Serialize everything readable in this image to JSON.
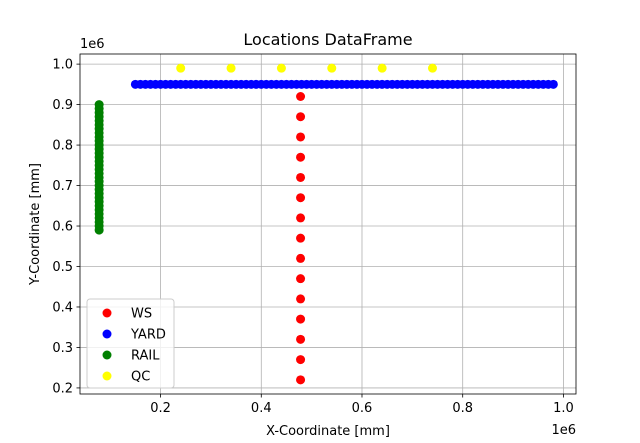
{
  "chart_data": {
    "type": "scatter",
    "title": "Locations DataFrame",
    "xlabel": "X-Coordinate [mm]",
    "ylabel": "Y-Coordinate [mm]",
    "x_offset_text": "1e6",
    "y_offset_text": "1e6",
    "xlim": [
      0.04,
      1.025
    ],
    "ylim": [
      0.185,
      1.025
    ],
    "xticks": [
      0.2,
      0.4,
      0.6,
      0.8,
      1.0
    ],
    "yticks": [
      0.2,
      0.3,
      0.4,
      0.5,
      0.6,
      0.7,
      0.8,
      0.9,
      1.0
    ],
    "xtick_labels": [
      "0.2",
      "0.4",
      "0.6",
      "0.8",
      "1.0"
    ],
    "ytick_labels": [
      "0.2",
      "0.3",
      "0.4",
      "0.5",
      "0.6",
      "0.7",
      "0.8",
      "0.9",
      "1.0"
    ],
    "grid": true,
    "legend_position": "lower-left",
    "series": [
      {
        "name": "WS",
        "color": "#ff0000",
        "points": [
          [
            0.478,
            0.22
          ],
          [
            0.478,
            0.27
          ],
          [
            0.478,
            0.32
          ],
          [
            0.478,
            0.37
          ],
          [
            0.478,
            0.42
          ],
          [
            0.478,
            0.47
          ],
          [
            0.478,
            0.52
          ],
          [
            0.478,
            0.57
          ],
          [
            0.478,
            0.62
          ],
          [
            0.478,
            0.67
          ],
          [
            0.478,
            0.72
          ],
          [
            0.478,
            0.77
          ],
          [
            0.478,
            0.82
          ],
          [
            0.478,
            0.87
          ],
          [
            0.478,
            0.92
          ]
        ]
      },
      {
        "name": "YARD",
        "color": "#0000ff",
        "points": [
          [
            0.15,
            0.95
          ],
          [
            0.16,
            0.95
          ],
          [
            0.17,
            0.95
          ],
          [
            0.18,
            0.95
          ],
          [
            0.19,
            0.95
          ],
          [
            0.2,
            0.95
          ],
          [
            0.21,
            0.95
          ],
          [
            0.22,
            0.95
          ],
          [
            0.23,
            0.95
          ],
          [
            0.24,
            0.95
          ],
          [
            0.25,
            0.95
          ],
          [
            0.26,
            0.95
          ],
          [
            0.27,
            0.95
          ],
          [
            0.28,
            0.95
          ],
          [
            0.29,
            0.95
          ],
          [
            0.3,
            0.95
          ],
          [
            0.31,
            0.95
          ],
          [
            0.32,
            0.95
          ],
          [
            0.33,
            0.95
          ],
          [
            0.34,
            0.95
          ],
          [
            0.35,
            0.95
          ],
          [
            0.36,
            0.95
          ],
          [
            0.37,
            0.95
          ],
          [
            0.38,
            0.95
          ],
          [
            0.39,
            0.95
          ],
          [
            0.4,
            0.95
          ],
          [
            0.41,
            0.95
          ],
          [
            0.42,
            0.95
          ],
          [
            0.43,
            0.95
          ],
          [
            0.44,
            0.95
          ],
          [
            0.45,
            0.95
          ],
          [
            0.46,
            0.95
          ],
          [
            0.47,
            0.95
          ],
          [
            0.48,
            0.95
          ],
          [
            0.49,
            0.95
          ],
          [
            0.5,
            0.95
          ],
          [
            0.51,
            0.95
          ],
          [
            0.52,
            0.95
          ],
          [
            0.53,
            0.95
          ],
          [
            0.54,
            0.95
          ],
          [
            0.55,
            0.95
          ],
          [
            0.56,
            0.95
          ],
          [
            0.57,
            0.95
          ],
          [
            0.58,
            0.95
          ],
          [
            0.59,
            0.95
          ],
          [
            0.6,
            0.95
          ],
          [
            0.61,
            0.95
          ],
          [
            0.62,
            0.95
          ],
          [
            0.63,
            0.95
          ],
          [
            0.64,
            0.95
          ],
          [
            0.65,
            0.95
          ],
          [
            0.66,
            0.95
          ],
          [
            0.67,
            0.95
          ],
          [
            0.68,
            0.95
          ],
          [
            0.69,
            0.95
          ],
          [
            0.7,
            0.95
          ],
          [
            0.71,
            0.95
          ],
          [
            0.72,
            0.95
          ],
          [
            0.73,
            0.95
          ],
          [
            0.74,
            0.95
          ],
          [
            0.75,
            0.95
          ],
          [
            0.76,
            0.95
          ],
          [
            0.77,
            0.95
          ],
          [
            0.78,
            0.95
          ],
          [
            0.79,
            0.95
          ],
          [
            0.8,
            0.95
          ],
          [
            0.81,
            0.95
          ],
          [
            0.82,
            0.95
          ],
          [
            0.83,
            0.95
          ],
          [
            0.84,
            0.95
          ],
          [
            0.85,
            0.95
          ],
          [
            0.86,
            0.95
          ],
          [
            0.87,
            0.95
          ],
          [
            0.88,
            0.95
          ],
          [
            0.89,
            0.95
          ],
          [
            0.9,
            0.95
          ],
          [
            0.91,
            0.95
          ],
          [
            0.92,
            0.95
          ],
          [
            0.93,
            0.95
          ],
          [
            0.94,
            0.95
          ],
          [
            0.95,
            0.95
          ],
          [
            0.96,
            0.95
          ],
          [
            0.97,
            0.95
          ],
          [
            0.98,
            0.95
          ]
        ]
      },
      {
        "name": "RAIL",
        "color": "#008000",
        "points": [
          [
            0.078,
            0.59
          ],
          [
            0.078,
            0.6
          ],
          [
            0.078,
            0.61
          ],
          [
            0.078,
            0.62
          ],
          [
            0.078,
            0.63
          ],
          [
            0.078,
            0.64
          ],
          [
            0.078,
            0.65
          ],
          [
            0.078,
            0.66
          ],
          [
            0.078,
            0.67
          ],
          [
            0.078,
            0.68
          ],
          [
            0.078,
            0.69
          ],
          [
            0.078,
            0.7
          ],
          [
            0.078,
            0.71
          ],
          [
            0.078,
            0.72
          ],
          [
            0.078,
            0.73
          ],
          [
            0.078,
            0.74
          ],
          [
            0.078,
            0.75
          ],
          [
            0.078,
            0.76
          ],
          [
            0.078,
            0.77
          ],
          [
            0.078,
            0.78
          ],
          [
            0.078,
            0.79
          ],
          [
            0.078,
            0.8
          ],
          [
            0.078,
            0.81
          ],
          [
            0.078,
            0.82
          ],
          [
            0.078,
            0.83
          ],
          [
            0.078,
            0.84
          ],
          [
            0.078,
            0.85
          ],
          [
            0.078,
            0.86
          ],
          [
            0.078,
            0.87
          ],
          [
            0.078,
            0.88
          ],
          [
            0.078,
            0.89
          ],
          [
            0.078,
            0.9
          ]
        ]
      },
      {
        "name": "QC",
        "color": "#ffff00",
        "points": [
          [
            0.24,
            0.99
          ],
          [
            0.34,
            0.99
          ],
          [
            0.44,
            0.99
          ],
          [
            0.54,
            0.99
          ],
          [
            0.64,
            0.99
          ],
          [
            0.74,
            0.99
          ]
        ]
      }
    ]
  }
}
